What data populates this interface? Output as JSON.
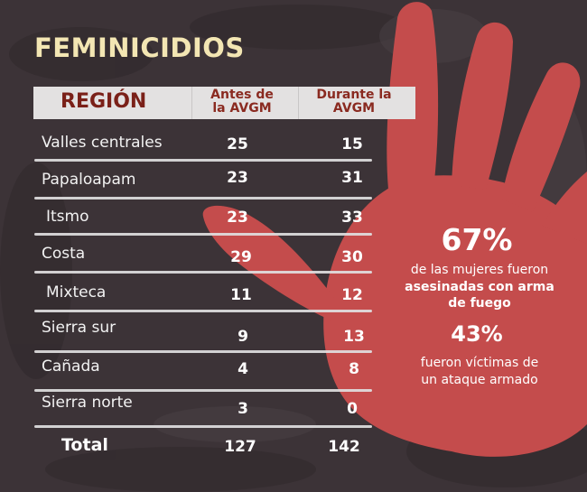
{
  "title": "FEMINICIDIOS",
  "colors": {
    "background": "#3c3337",
    "hand": "#c44c4c",
    "title": "#f3e6b3",
    "header_bg": "#e3e1e1",
    "header_text": "#7a2018"
  },
  "table": {
    "header": {
      "region": "REGIÓN",
      "col1_line1": "Antes de",
      "col1_line2": "la AVGM",
      "col2_line1": "Durante la",
      "col2_line2": "AVGM"
    },
    "rows": [
      {
        "region": "Valles centrales",
        "antes": "25",
        "durante": "15"
      },
      {
        "region": "Papaloapam",
        "antes": "23",
        "durante": "31"
      },
      {
        "region": "Itsmo",
        "antes": "23",
        "durante": "33"
      },
      {
        "region": "Costa",
        "antes": "29",
        "durante": "30"
      },
      {
        "region": "Mixteca",
        "antes": "11",
        "durante": "12"
      },
      {
        "region": "Sierra sur",
        "antes": "9",
        "durante": "13"
      },
      {
        "region": "Cañada",
        "antes": "4",
        "durante": "8"
      },
      {
        "region": "Sierra norte",
        "antes": "3",
        "durante": "0"
      }
    ],
    "total": {
      "label": "Total",
      "antes": "127",
      "durante": "142"
    }
  },
  "stats": {
    "pct1": "67%",
    "pct1_line1": "de las mujeres fueron",
    "pct1_line2": "asesinadas con arma",
    "pct1_line3": "de fuego",
    "pct2": "43%",
    "pct2_line1": "fueron víctimas de",
    "pct2_line2": "un ataque armado"
  },
  "chart_data": {
    "type": "table",
    "title": "FEMINICIDIOS",
    "columns": [
      "REGIÓN",
      "Antes de la AVGM",
      "Durante la AVGM"
    ],
    "categories": [
      "Valles centrales",
      "Papaloapam",
      "Itsmo",
      "Costa",
      "Mixteca",
      "Sierra sur",
      "Cañada",
      "Sierra norte",
      "Total"
    ],
    "series": [
      {
        "name": "Antes de la AVGM",
        "values": [
          25,
          23,
          23,
          29,
          11,
          9,
          4,
          3,
          127
        ]
      },
      {
        "name": "Durante la AVGM",
        "values": [
          15,
          31,
          33,
          30,
          12,
          13,
          8,
          0,
          142
        ]
      }
    ]
  }
}
